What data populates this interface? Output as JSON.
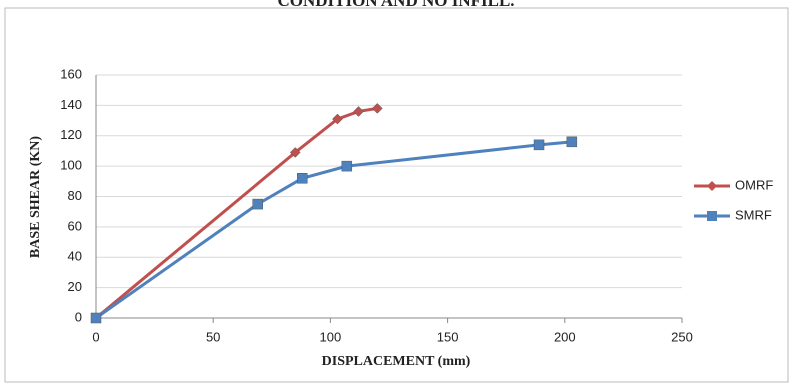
{
  "chart_data": {
    "type": "line",
    "title": "CONDITION AND NO INFILL.",
    "x_label": "DISPLACEMENT (mm)",
    "y_label": "BASE SHEAR (KN)",
    "xlim": [
      0,
      250
    ],
    "xticks": [
      0,
      50,
      100,
      150,
      200,
      250
    ],
    "ylim": [
      0,
      160
    ],
    "yticks": [
      0,
      20,
      40,
      60,
      80,
      100,
      120,
      140,
      160
    ],
    "grid": true,
    "legend": "right",
    "series": [
      {
        "name": "OMRF",
        "color": "#c0504d",
        "marker": "diamond",
        "x": [
          0,
          85,
          103,
          112,
          120
        ],
        "values": [
          0,
          109,
          131,
          136,
          138
        ]
      },
      {
        "name": "SMRF",
        "color": "#4f81bd",
        "marker": "square",
        "x": [
          0,
          69,
          88,
          107,
          189,
          203
        ],
        "values": [
          0,
          75,
          92,
          100,
          114,
          116
        ]
      }
    ]
  }
}
